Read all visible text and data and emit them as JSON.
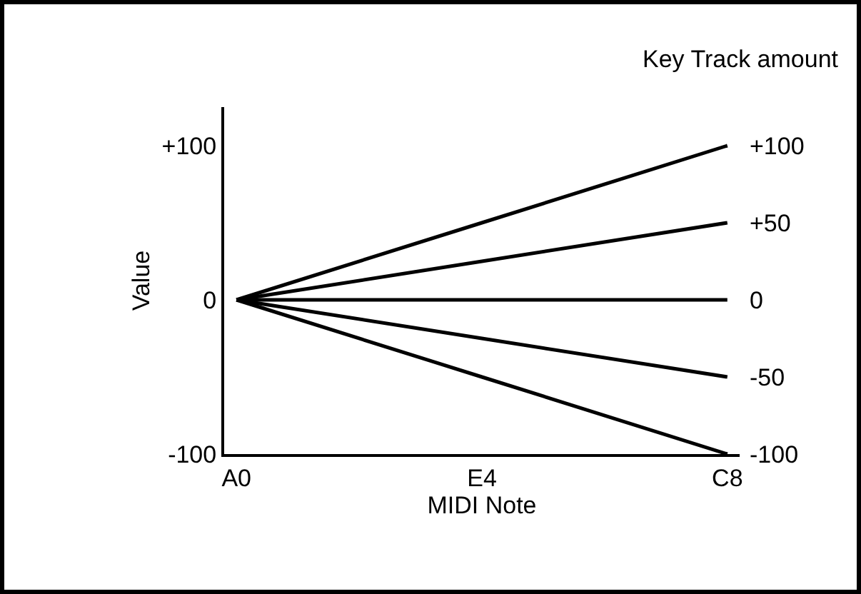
{
  "chart_data": {
    "type": "line",
    "xlabel": "MIDI Note",
    "ylabel": "Value",
    "legend_title": "Key Track amount",
    "categories": [
      "A0",
      "E4",
      "C8"
    ],
    "ylim": [
      -100,
      125
    ],
    "yticks": [
      {
        "value": 100,
        "label": "+100"
      },
      0,
      -100
    ],
    "series": [
      {
        "name": "+100",
        "color": "#000000",
        "values": [
          0,
          50,
          100
        ]
      },
      {
        "name": "+50",
        "color": "#000000",
        "values": [
          0,
          25,
          50
        ]
      },
      {
        "name": "0",
        "color": "#000000",
        "values": [
          0,
          0,
          0
        ]
      },
      {
        "name": "-50",
        "color": "#000000",
        "values": [
          0,
          -25,
          -50
        ]
      },
      {
        "name": "-100",
        "color": "#000000",
        "values": [
          0,
          -50,
          -100
        ]
      }
    ]
  }
}
